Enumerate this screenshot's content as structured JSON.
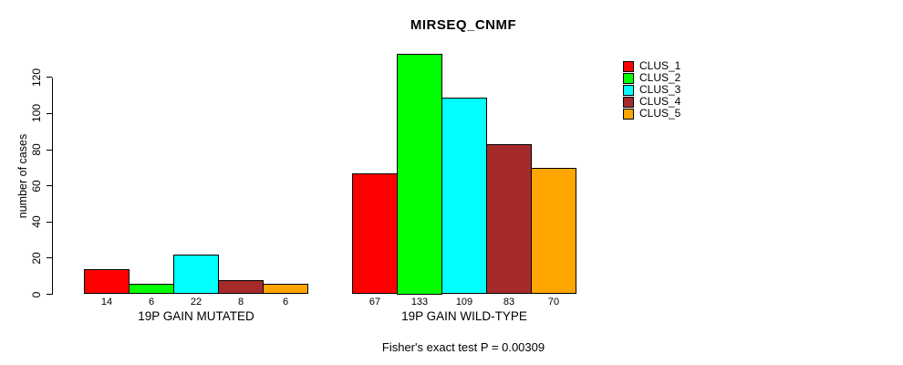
{
  "title": "MIRSEQ_CNMF",
  "y_axis": {
    "label": "number of cases",
    "tick_labels": [
      "0",
      "20",
      "40",
      "60",
      "80",
      "100",
      "120"
    ]
  },
  "groups": {
    "mutated_label": "19P GAIN MUTATED",
    "wild_type_label": "19P GAIN WILD-TYPE"
  },
  "legend": {
    "items": [
      {
        "label": "CLUS_1",
        "color": "#FF0000"
      },
      {
        "label": "CLUS_2",
        "color": "#00FF00"
      },
      {
        "label": "CLUS_3",
        "color": "#00FFFF"
      },
      {
        "label": "CLUS_4",
        "color": "#A52A2A"
      },
      {
        "label": "CLUS_5",
        "color": "#FFA500"
      }
    ]
  },
  "footer": {
    "pvalue_text": "Fisher's exact test P = 0.00309"
  },
  "chart_data": {
    "type": "bar",
    "title": "MIRSEQ_CNMF",
    "xlabel": "",
    "ylabel": "number of cases",
    "ylim": [
      0,
      133
    ],
    "yticks": [
      0,
      20,
      40,
      60,
      80,
      100,
      120
    ],
    "grid": false,
    "legend_position": "top-right",
    "value_labels_shown": true,
    "categories": [
      "19P GAIN MUTATED",
      "19P GAIN WILD-TYPE"
    ],
    "series": [
      {
        "name": "CLUS_1",
        "color": "#FF0000",
        "values": [
          14,
          67
        ]
      },
      {
        "name": "CLUS_2",
        "color": "#00FF00",
        "values": [
          6,
          133
        ]
      },
      {
        "name": "CLUS_3",
        "color": "#00FFFF",
        "values": [
          22,
          109
        ]
      },
      {
        "name": "CLUS_4",
        "color": "#A52A2A",
        "values": [
          8,
          83
        ]
      },
      {
        "name": "CLUS_5",
        "color": "#FFA500",
        "values": [
          6,
          70
        ]
      }
    ],
    "annotation": "Fisher's exact test P = 0.00309"
  }
}
